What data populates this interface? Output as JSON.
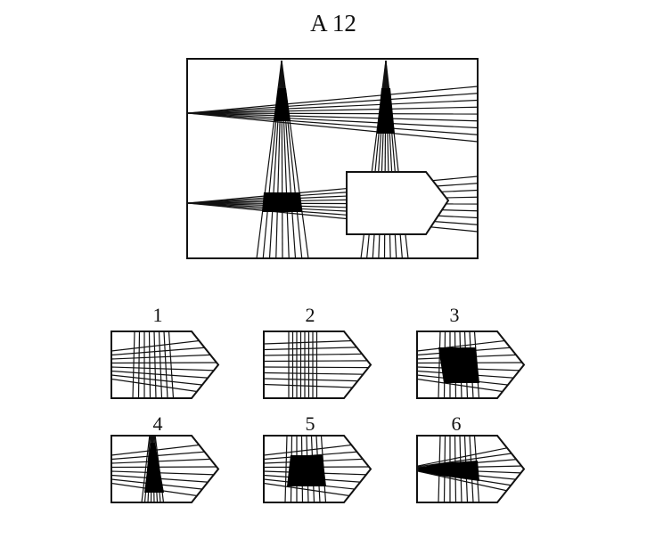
{
  "puzzle": {
    "title": "A 12",
    "options": [
      {
        "label": "1",
        "variant": "thin-lines-crossing"
      },
      {
        "label": "2",
        "variant": "parallel-lines-crossing"
      },
      {
        "label": "3",
        "variant": "large-black-block"
      },
      {
        "label": "4",
        "variant": "narrow-black-wedge"
      },
      {
        "label": "5",
        "variant": "medium-black-block"
      },
      {
        "label": "6",
        "variant": "flat-black-band"
      }
    ]
  },
  "colors": {
    "ink": "#111111",
    "background": "#ffffff"
  }
}
